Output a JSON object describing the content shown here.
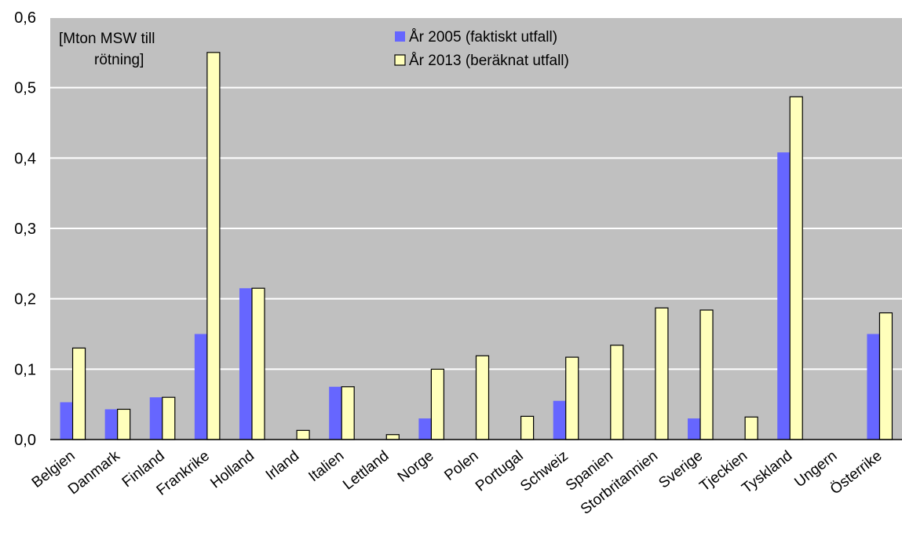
{
  "chart_data": {
    "type": "bar",
    "title": "",
    "ylabel": "[Mton MSW till rötning]",
    "ylabel_lines": [
      "[Mton MSW till",
      "rötning]"
    ],
    "xlabel": "",
    "ylim": [
      0,
      0.6
    ],
    "yticks": [
      0,
      0.1,
      0.2,
      0.3,
      0.4,
      0.5,
      0.6
    ],
    "ytick_labels": [
      "0,0",
      "0,1",
      "0,2",
      "0,3",
      "0,4",
      "0,5",
      "0,6"
    ],
    "grid": true,
    "legend_position": "top-center",
    "categories": [
      "Belgien",
      "Danmark",
      "Finland",
      "Frankrike",
      "Holland",
      "Irland",
      "Italien",
      "Lettland",
      "Norge",
      "Polen",
      "Portugal",
      "Schweiz",
      "Spanien",
      "Storbritannien",
      "Sverige",
      "Tjeckien",
      "Tyskland",
      "Ungern",
      "Österrike"
    ],
    "series": [
      {
        "name": "År 2005 (faktiskt utfall)",
        "color": "#6666ff",
        "values": [
          0.053,
          0.043,
          0.06,
          0.15,
          0.215,
          0,
          0.075,
          0,
          0.03,
          0,
          0,
          0.055,
          0,
          0,
          0.03,
          0,
          0.408,
          0,
          0.15
        ]
      },
      {
        "name": "År 2013 (beräknat utfall)",
        "color": "#ffffbb",
        "values": [
          0.13,
          0.043,
          0.06,
          0.55,
          0.215,
          0.013,
          0.075,
          0.007,
          0.1,
          0.119,
          0.033,
          0.117,
          0.134,
          0.187,
          0.184,
          0.032,
          0.487,
          0,
          0.18
        ]
      }
    ],
    "plot_background": "#c0c0c0",
    "grid_color": "#ffffff"
  }
}
